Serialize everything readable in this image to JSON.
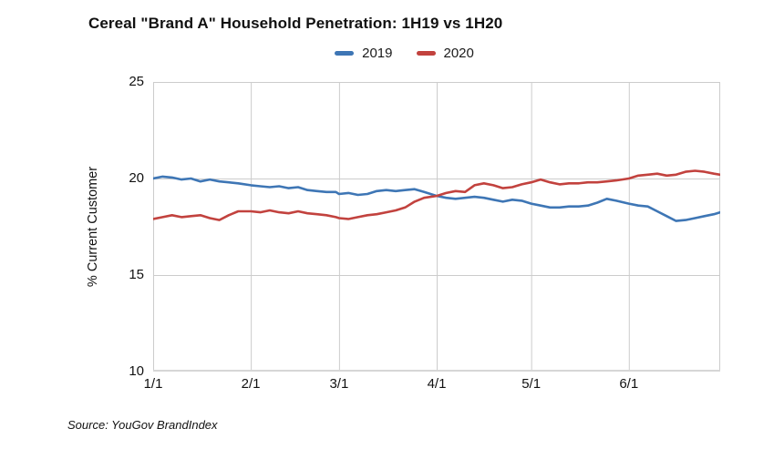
{
  "title": "Cereal \"Brand A\" Household Penetration: 1H19 vs 1H20",
  "source": "Source: YouGov BrandIndex",
  "colors": {
    "series_2019": "#3E76B5",
    "series_2020": "#C2423E",
    "grid": "#cccccc",
    "axis": "#d6d6d6",
    "text": "#111111",
    "background": "#ffffff"
  },
  "legend": [
    {
      "label": "2019",
      "color": "#3E76B5"
    },
    {
      "label": "2020",
      "color": "#C2423E"
    }
  ],
  "chart_data": {
    "type": "line",
    "title": "Cereal \"Brand A\" Household Penetration: 1H19 vs 1H20",
    "xlabel": "",
    "ylabel": "% Current Customer",
    "ylim": [
      10,
      25
    ],
    "y_ticks": [
      10,
      15,
      20,
      25
    ],
    "x_range_days": [
      0,
      180
    ],
    "x_ticks": [
      {
        "day": 0,
        "label": "1/1"
      },
      {
        "day": 31,
        "label": "2/1"
      },
      {
        "day": 59,
        "label": "3/1"
      },
      {
        "day": 90,
        "label": "4/1"
      },
      {
        "day": 120,
        "label": "5/1"
      },
      {
        "day": 151,
        "label": "6/1"
      }
    ],
    "grid": true,
    "legend_position": "top",
    "x_days": [
      0,
      3,
      6,
      9,
      12,
      15,
      18,
      21,
      24,
      27,
      31,
      34,
      37,
      40,
      43,
      46,
      49,
      52,
      55,
      58,
      59,
      62,
      65,
      68,
      71,
      74,
      77,
      80,
      83,
      86,
      90,
      93,
      96,
      99,
      102,
      105,
      108,
      111,
      114,
      117,
      120,
      123,
      126,
      129,
      132,
      135,
      138,
      141,
      144,
      147,
      151,
      154,
      157,
      160,
      163,
      166,
      169,
      172,
      175,
      178,
      180
    ],
    "series": [
      {
        "name": "2019",
        "color": "#3E76B5",
        "values": [
          20.0,
          20.1,
          20.05,
          19.95,
          20.0,
          19.85,
          19.95,
          19.85,
          19.8,
          19.75,
          19.65,
          19.6,
          19.55,
          19.6,
          19.5,
          19.55,
          19.4,
          19.35,
          19.3,
          19.3,
          19.2,
          19.25,
          19.15,
          19.2,
          19.35,
          19.4,
          19.35,
          19.4,
          19.45,
          19.3,
          19.1,
          19.0,
          18.95,
          19.0,
          19.05,
          19.0,
          18.9,
          18.8,
          18.9,
          18.85,
          18.7,
          18.6,
          18.5,
          18.5,
          18.55,
          18.55,
          18.6,
          18.75,
          18.95,
          18.85,
          18.7,
          18.6,
          18.55,
          18.3,
          18.05,
          17.8,
          17.85,
          17.95,
          18.05,
          18.15,
          18.25
        ]
      },
      {
        "name": "2020",
        "color": "#C2423E",
        "values": [
          17.9,
          18.0,
          18.1,
          18.0,
          18.05,
          18.1,
          17.95,
          17.85,
          18.1,
          18.3,
          18.3,
          18.25,
          18.35,
          18.25,
          18.2,
          18.3,
          18.2,
          18.15,
          18.1,
          18.0,
          17.95,
          17.9,
          18.0,
          18.1,
          18.15,
          18.25,
          18.35,
          18.5,
          18.8,
          19.0,
          19.1,
          19.25,
          19.35,
          19.3,
          19.65,
          19.75,
          19.65,
          19.5,
          19.55,
          19.7,
          19.8,
          19.95,
          19.8,
          19.7,
          19.75,
          19.75,
          19.8,
          19.8,
          19.85,
          19.9,
          20.0,
          20.15,
          20.2,
          20.25,
          20.15,
          20.2,
          20.35,
          20.4,
          20.35,
          20.25,
          20.2
        ]
      }
    ]
  }
}
